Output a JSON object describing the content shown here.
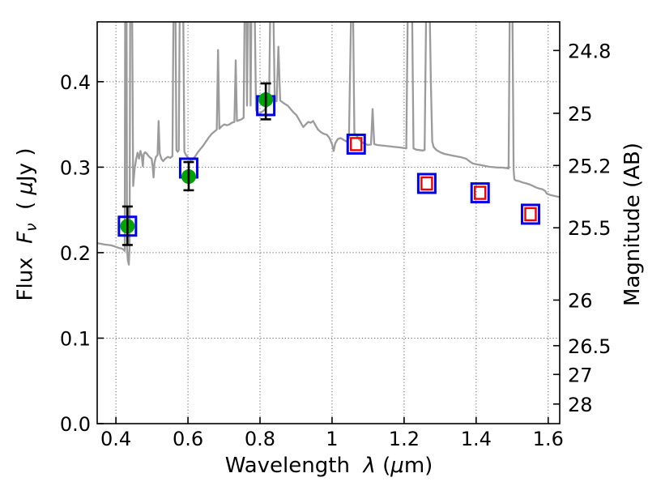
{
  "chart_data": {
    "type": "line+scatter",
    "title": "",
    "xlabel": {
      "text": "Wavelength λ (μm)",
      "prefix": "Wavelength  ",
      "symbol": "λ",
      "unit_open": " (",
      "unit_mu": "μ",
      "unit_close": "m)"
    },
    "ylabel_left": {
      "text": "Flux Fν ( μJy )",
      "prefix": "Flux  ",
      "symbol": "F",
      "subscript": "ν",
      "unit_open": "  ( ",
      "unit_mu": "μ",
      "unit_close": "Jy )"
    },
    "ylabel_right": "Magnitude (AB)",
    "xlim": [
      0.348,
      1.632
    ],
    "ylim_flux": [
      0,
      0.47
    ],
    "ylim_mag_ref_zeropoint": 23.9,
    "grid": "dotted",
    "legend_position": "none",
    "x_ticks": {
      "values": [
        0.4,
        0.6,
        0.8,
        1.0,
        1.2,
        1.4,
        1.6
      ],
      "labels": [
        "0.4",
        "0.6",
        "0.8",
        "1",
        "1.2",
        "1.4",
        "1.6"
      ]
    },
    "y_ticks_left_flux": {
      "values": [
        0.0,
        0.1,
        0.2,
        0.3,
        0.4
      ],
      "labels": [
        "0.0",
        "0.1",
        "0.2",
        "0.3",
        "0.4"
      ]
    },
    "y_ticks_right_mag": {
      "values": [
        24.8,
        25,
        25.2,
        25.5,
        26,
        26.5,
        27,
        28
      ],
      "labels": [
        "24.8",
        "25",
        "25.2",
        "25.5",
        "26",
        "26.5",
        "27",
        "28"
      ]
    },
    "colors": {
      "spectrum": "#9b9b9b",
      "observed_circle": "#00a303",
      "square_outer_blue": "#0000f0",
      "square_inner_red": "#f00000",
      "error_bar": "#000000",
      "grid": "#666666",
      "axis": "#000000"
    },
    "series": [
      {
        "name": "model galaxy spectrum",
        "type": "line",
        "color": "#9b9b9b",
        "points": [
          [
            0.348,
            0.211
          ],
          [
            0.358,
            0.2105
          ],
          [
            0.368,
            0.2095
          ],
          [
            0.378,
            0.209
          ],
          [
            0.388,
            0.2085
          ],
          [
            0.398,
            0.207
          ],
          [
            0.408,
            0.2055
          ],
          [
            0.416,
            0.205
          ],
          [
            0.421,
            0.2035
          ],
          [
            0.4245,
            0.202
          ],
          [
            0.4256,
            0.472
          ],
          [
            0.4296,
            0.472
          ],
          [
            0.4308,
            0.206
          ],
          [
            0.433,
            0.191
          ],
          [
            0.436,
            0.186
          ],
          [
            0.438,
            0.208
          ],
          [
            0.4396,
            0.472
          ],
          [
            0.4452,
            0.472
          ],
          [
            0.4478,
            0.278
          ],
          [
            0.452,
            0.298
          ],
          [
            0.456,
            0.309
          ],
          [
            0.46,
            0.317
          ],
          [
            0.464,
            0.31
          ],
          [
            0.468,
            0.319
          ],
          [
            0.472,
            0.313
          ],
          [
            0.4745,
            0.301
          ],
          [
            0.477,
            0.315
          ],
          [
            0.481,
            0.3175
          ],
          [
            0.486,
            0.3155
          ],
          [
            0.49,
            0.3135
          ],
          [
            0.4945,
            0.3115
          ],
          [
            0.499,
            0.31
          ],
          [
            0.502,
            0.3
          ],
          [
            0.5045,
            0.288
          ],
          [
            0.507,
            0.305
          ],
          [
            0.511,
            0.312
          ],
          [
            0.5155,
            0.314
          ],
          [
            0.5185,
            0.354
          ],
          [
            0.5215,
            0.316
          ],
          [
            0.526,
            0.31
          ],
          [
            0.531,
            0.307
          ],
          [
            0.537,
            0.31
          ],
          [
            0.544,
            0.312
          ],
          [
            0.551,
            0.311
          ],
          [
            0.557,
            0.313
          ],
          [
            0.5596,
            0.472
          ],
          [
            0.5655,
            0.472
          ],
          [
            0.568,
            0.32
          ],
          [
            0.5715,
            0.318
          ],
          [
            0.5745,
            0.32
          ],
          [
            0.577,
            0.472
          ],
          [
            0.587,
            0.472
          ],
          [
            0.59,
            0.318
          ],
          [
            0.595,
            0.314
          ],
          [
            0.601,
            0.311
          ],
          [
            0.607,
            0.308
          ],
          [
            0.613,
            0.309
          ],
          [
            0.619,
            0.312
          ],
          [
            0.6265,
            0.317
          ],
          [
            0.634,
            0.321
          ],
          [
            0.642,
            0.325
          ],
          [
            0.65,
            0.33
          ],
          [
            0.658,
            0.335
          ],
          [
            0.666,
            0.339
          ],
          [
            0.674,
            0.342
          ],
          [
            0.68,
            0.344
          ],
          [
            0.6835,
            0.437
          ],
          [
            0.687,
            0.345
          ],
          [
            0.694,
            0.348
          ],
          [
            0.701,
            0.35
          ],
          [
            0.708,
            0.349
          ],
          [
            0.715,
            0.35
          ],
          [
            0.722,
            0.352
          ],
          [
            0.729,
            0.353
          ],
          [
            0.7325,
            0.425
          ],
          [
            0.736,
            0.354
          ],
          [
            0.742,
            0.355
          ],
          [
            0.749,
            0.356
          ],
          [
            0.7545,
            0.358
          ],
          [
            0.757,
            0.472
          ],
          [
            0.7625,
            0.472
          ],
          [
            0.764,
            0.372
          ],
          [
            0.766,
            0.472
          ],
          [
            0.772,
            0.472
          ],
          [
            0.774,
            0.372
          ],
          [
            0.776,
            0.472
          ],
          [
            0.7855,
            0.472
          ],
          [
            0.789,
            0.367
          ],
          [
            0.794,
            0.363
          ],
          [
            0.8,
            0.363
          ],
          [
            0.806,
            0.365
          ],
          [
            0.8125,
            0.367
          ],
          [
            0.819,
            0.371
          ],
          [
            0.825,
            0.374
          ],
          [
            0.828,
            0.472
          ],
          [
            0.8375,
            0.472
          ],
          [
            0.841,
            0.378
          ],
          [
            0.846,
            0.377
          ],
          [
            0.851,
            0.441
          ],
          [
            0.856,
            0.378
          ],
          [
            0.862,
            0.376
          ],
          [
            0.869,
            0.374
          ],
          [
            0.877,
            0.372
          ],
          [
            0.885,
            0.368
          ],
          [
            0.893,
            0.364
          ],
          [
            0.901,
            0.361
          ],
          [
            0.908,
            0.356
          ],
          [
            0.9145,
            0.351
          ],
          [
            0.92,
            0.347
          ],
          [
            0.927,
            0.35
          ],
          [
            0.934,
            0.353
          ],
          [
            0.941,
            0.352
          ],
          [
            0.9475,
            0.354
          ],
          [
            0.954,
            0.349
          ],
          [
            0.961,
            0.344
          ],
          [
            0.969,
            0.341
          ],
          [
            0.977,
            0.339
          ],
          [
            0.9855,
            0.338
          ],
          [
            0.993,
            0.334
          ],
          [
            1.0,
            0.327
          ],
          [
            1.0045,
            0.319
          ],
          [
            1.009,
            0.328
          ],
          [
            1.016,
            0.333
          ],
          [
            1.024,
            0.334
          ],
          [
            1.032,
            0.332
          ],
          [
            1.04,
            0.33
          ],
          [
            1.047,
            0.334
          ],
          [
            1.0525,
            0.472
          ],
          [
            1.0585,
            0.472
          ],
          [
            1.062,
            0.34
          ],
          [
            1.068,
            0.337
          ],
          [
            1.076,
            0.332
          ],
          [
            1.084,
            0.329
          ],
          [
            1.092,
            0.327
          ],
          [
            1.1,
            0.326
          ],
          [
            1.108,
            0.3265
          ],
          [
            1.1125,
            0.368
          ],
          [
            1.117,
            0.327
          ],
          [
            1.125,
            0.326
          ],
          [
            1.135,
            0.3255
          ],
          [
            1.146,
            0.325
          ],
          [
            1.157,
            0.3245
          ],
          [
            1.168,
            0.324
          ],
          [
            1.179,
            0.3235
          ],
          [
            1.19,
            0.323
          ],
          [
            1.199,
            0.3225
          ],
          [
            1.206,
            0.322
          ],
          [
            1.21,
            0.472
          ],
          [
            1.2225,
            0.472
          ],
          [
            1.226,
            0.322
          ],
          [
            1.234,
            0.3205
          ],
          [
            1.243,
            0.32
          ],
          [
            1.252,
            0.3195
          ],
          [
            1.257,
            0.32
          ],
          [
            1.261,
            0.472
          ],
          [
            1.2715,
            0.472
          ],
          [
            1.2745,
            0.396
          ],
          [
            1.278,
            0.33
          ],
          [
            1.282,
            0.3235
          ],
          [
            1.29,
            0.32
          ],
          [
            1.3,
            0.3175
          ],
          [
            1.312,
            0.3155
          ],
          [
            1.324,
            0.3145
          ],
          [
            1.336,
            0.3135
          ],
          [
            1.348,
            0.3125
          ],
          [
            1.36,
            0.3115
          ],
          [
            1.372,
            0.31
          ],
          [
            1.381,
            0.307
          ],
          [
            1.39,
            0.3045
          ],
          [
            1.4,
            0.3035
          ],
          [
            1.412,
            0.3025
          ],
          [
            1.424,
            0.3015
          ],
          [
            1.436,
            0.3005
          ],
          [
            1.448,
            0.3
          ],
          [
            1.46,
            0.2995
          ],
          [
            1.472,
            0.2995
          ],
          [
            1.484,
            0.299
          ],
          [
            1.49,
            0.2985
          ],
          [
            1.493,
            0.472
          ],
          [
            1.501,
            0.472
          ],
          [
            1.504,
            0.297
          ],
          [
            1.506,
            0.286
          ],
          [
            1.51,
            0.2845
          ],
          [
            1.52,
            0.2835
          ],
          [
            1.53,
            0.282
          ],
          [
            1.54,
            0.281
          ],
          [
            1.55,
            0.2795
          ],
          [
            1.558,
            0.278
          ],
          [
            1.565,
            0.2765
          ],
          [
            1.575,
            0.275
          ],
          [
            1.585,
            0.274
          ],
          [
            1.592,
            0.272
          ],
          [
            1.596,
            0.269
          ],
          [
            1.606,
            0.2675
          ],
          [
            1.616,
            0.2665
          ],
          [
            1.626,
            0.2655
          ],
          [
            1.632,
            0.265
          ]
        ]
      },
      {
        "name": "observed photometry (green circles with error bars)",
        "type": "scatter",
        "marker": "filled-circle",
        "color": "#00a303",
        "points": [
          {
            "x": 0.432,
            "y": 0.231,
            "yerr_plus": 0.023,
            "yerr_minus": 0.022
          },
          {
            "x": 0.602,
            "y": 0.289,
            "yerr_plus": 0.017,
            "yerr_minus": 0.016
          },
          {
            "x": 0.816,
            "y": 0.379,
            "yerr_plus": 0.019,
            "yerr_minus": 0.023
          }
        ]
      },
      {
        "name": "model photometry (blue open squares)",
        "type": "scatter",
        "marker": "open-square",
        "color": "#0000f0",
        "points": [
          [
            0.432,
            0.231
          ],
          [
            0.602,
            0.299
          ],
          [
            0.816,
            0.372
          ],
          [
            1.067,
            0.327
          ],
          [
            1.263,
            0.281
          ],
          [
            1.411,
            0.27
          ],
          [
            1.551,
            0.245
          ]
        ]
      },
      {
        "name": "model photometry (red inner open squares)",
        "type": "scatter",
        "marker": "open-square-small",
        "color": "#f00000",
        "points": [
          [
            1.067,
            0.327
          ],
          [
            1.263,
            0.281
          ],
          [
            1.411,
            0.27
          ],
          [
            1.551,
            0.245
          ]
        ]
      }
    ]
  }
}
